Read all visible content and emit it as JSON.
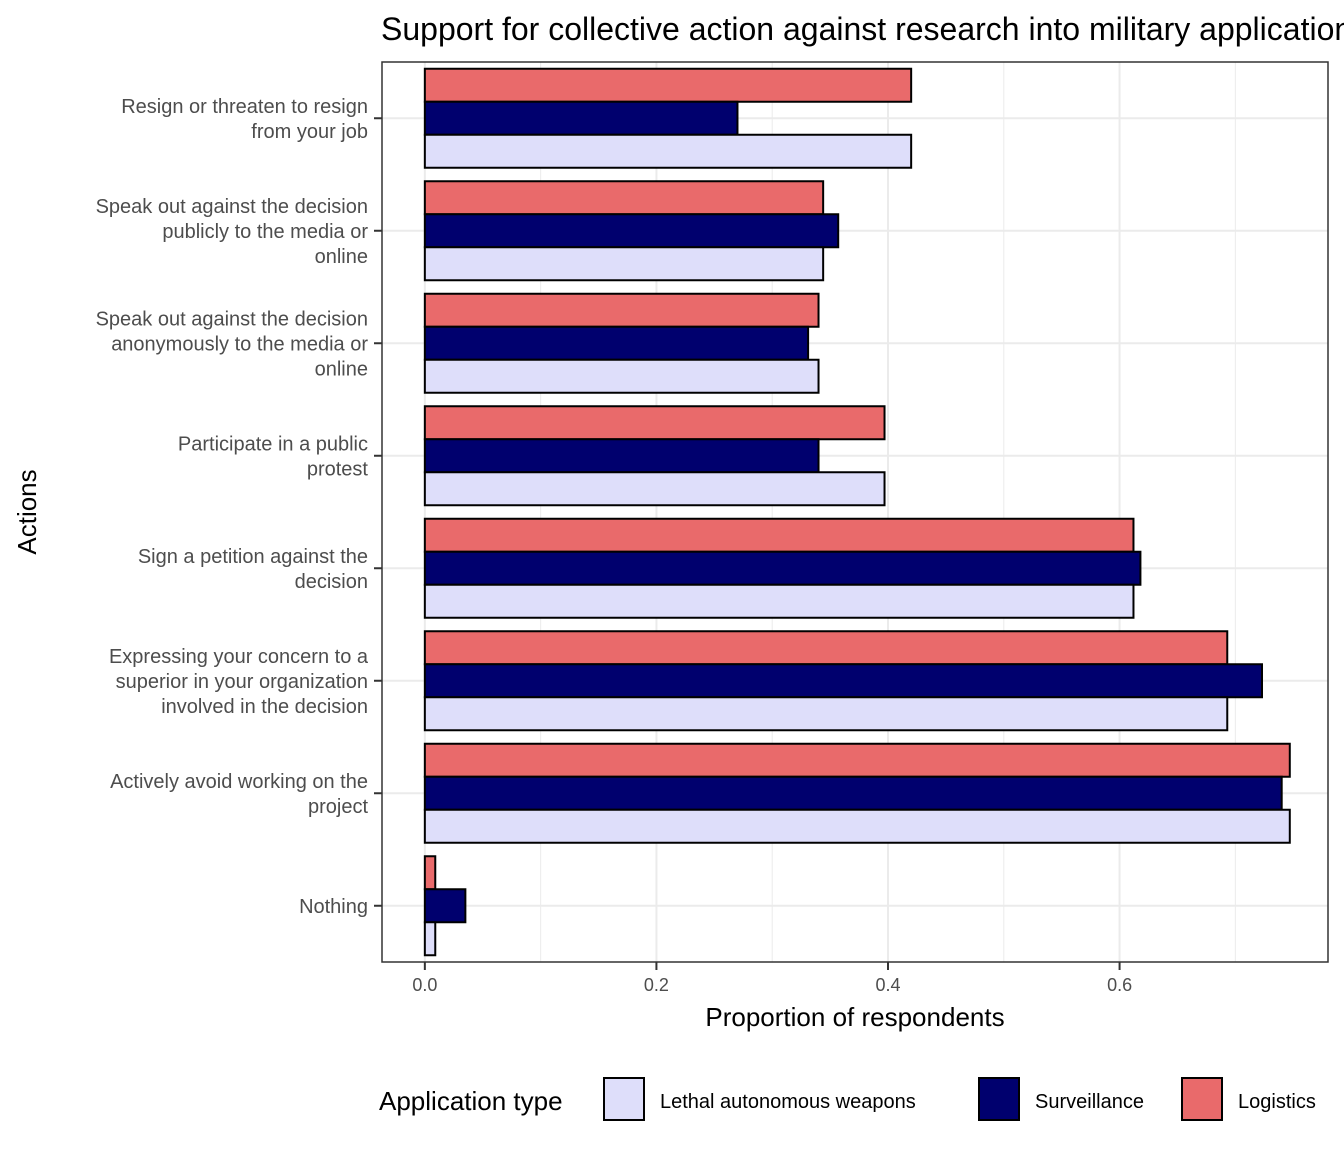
{
  "chart_data": {
    "type": "bar",
    "orientation": "horizontal",
    "title": "Support for collective action against research into military applications",
    "xlabel": "Proportion of respondents",
    "ylabel": "Actions",
    "xlim": [
      -0.037,
      0.78
    ],
    "xticks": [
      0.0,
      0.2,
      0.4,
      0.6
    ],
    "xtick_labels": [
      "0.0",
      "0.2",
      "0.4",
      "0.6"
    ],
    "grid": true,
    "legend_position": "bottom",
    "legend_title": "Application type",
    "categories": [
      [
        "Resign or threaten to resign",
        "from your job"
      ],
      [
        "Speak out against the decision",
        "publicly to the media or",
        "online"
      ],
      [
        "Speak out against the decision",
        "anonymously to the media or",
        "online"
      ],
      [
        "Participate in a public",
        "protest"
      ],
      [
        "Sign a petition against the",
        "decision"
      ],
      [
        "Expressing your concern to a",
        "superior in your organization",
        "involved in the decision"
      ],
      [
        "Actively avoid working on the",
        "project"
      ],
      [
        "Nothing"
      ]
    ],
    "series": [
      {
        "name": "Lethal autonomous weapons",
        "color": "#dedefa",
        "values": [
          0.42,
          0.344,
          0.34,
          0.397,
          0.612,
          0.693,
          0.747,
          0.009
        ]
      },
      {
        "name": "Surveillance",
        "color": "#00006e",
        "values": [
          0.27,
          0.357,
          0.331,
          0.34,
          0.618,
          0.723,
          0.74,
          0.035
        ]
      },
      {
        "name": "Logistics",
        "color": "#e96a6b",
        "values": [
          0.42,
          0.344,
          0.34,
          0.397,
          0.612,
          0.693,
          0.747,
          0.009
        ]
      }
    ]
  }
}
